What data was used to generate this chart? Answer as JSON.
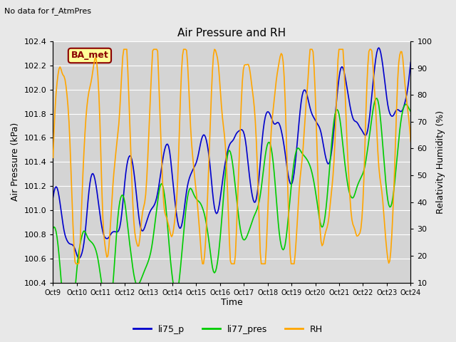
{
  "title": "Air Pressure and RH",
  "subtitle": "No data for f_AtmPres",
  "xlabel": "Time",
  "ylabel_left": "Air Pressure (kPa)",
  "ylabel_right": "Relativity Humidity (%)",
  "ylim_left": [
    100.4,
    102.4
  ],
  "ylim_right": [
    10,
    100
  ],
  "yticks_left": [
    100.4,
    100.6,
    100.8,
    101.0,
    101.2,
    101.4,
    101.6,
    101.8,
    102.0,
    102.2,
    102.4
  ],
  "yticks_right": [
    10,
    20,
    30,
    40,
    50,
    60,
    70,
    80,
    90,
    100
  ],
  "xtick_labels": [
    "Oct 9",
    "Oct 10",
    "Oct 11",
    "Oct 12",
    "Oct 13",
    "Oct 14",
    "Oct 15",
    "Oct 16",
    "Oct 17",
    "Oct 18",
    "Oct 19",
    "Oct 20",
    "Oct 21",
    "Oct 22",
    "Oct 23",
    "Oct 24"
  ],
  "legend_labels": [
    "li75_p",
    "li77_pres",
    "RH"
  ],
  "legend_colors": [
    "#0000cc",
    "#00cc00",
    "#ffa500"
  ],
  "box_label": "BA_met",
  "box_facecolor": "#ffff99",
  "box_edgecolor": "#8B0000",
  "fig_facecolor": "#e8e8e8",
  "plot_facecolor": "#d4d4d4",
  "grid_color": "#ffffff",
  "line_width": 1.2,
  "figsize": [
    6.4,
    4.8
  ],
  "dpi": 100
}
